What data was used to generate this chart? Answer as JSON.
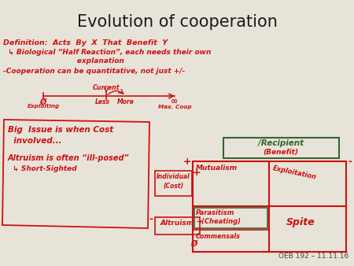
{
  "title": "Evolution of cooperation",
  "bg_color": "#e8e3d8",
  "title_color": "#1a1a1a",
  "red_color": "#cc1111",
  "green_color": "#336633",
  "footer": "OEB 192 – 11.11.16",
  "title_fontsize": 15,
  "line1a": "Definition:  Acts  By  X  That  Benefit  Y",
  "line1b": "  ↳ Biological “Half Reaction”, each needs their own",
  "line1c": "                              explanation",
  "line2": "-Cooperation can be quantitative, not just +/-",
  "current_label": "Current",
  "phi_label": "Ø",
  "exploiting_label": "Exploiting",
  "less_label": "Less",
  "more_label": "More",
  "inf_label": "∞",
  "maxcoop_label": "Max. Coop",
  "big_issue1": "Big  Issue is when Cost",
  "big_issue2": "  involved...",
  "altruism_ill": "Altruism is often “ill-posed”",
  "short_sighted": "  ↳ Short-Sighted",
  "recipient_label": "/Recipient",
  "benefit_label": "(Benefit)",
  "mutualism": "Mutualism",
  "exploitation": "Exploitation",
  "parasitism": "Parasitism",
  "cheating": "→(Cheating)",
  "spite": "Spite",
  "commensals": "Commensals",
  "individual_label": "Individual",
  "cost_label": "(Cost)",
  "altruism_box": "Altruism",
  "plus1": "+",
  "minus1": "-",
  "plus2": "+",
  "minus2": "-"
}
